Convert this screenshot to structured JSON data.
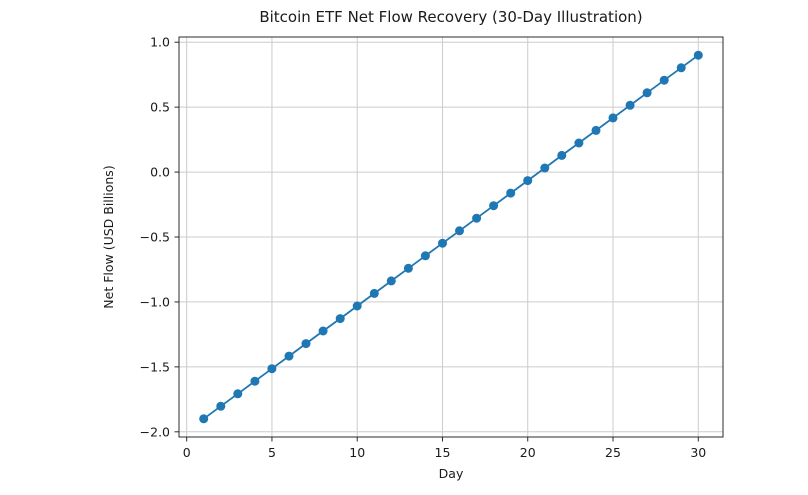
{
  "chart_data": {
    "type": "line",
    "title": "Bitcoin ETF Net Flow Recovery (30-Day Illustration)",
    "xlabel": "Day",
    "ylabel": "Net Flow (USD Billions)",
    "x": [
      1,
      2,
      3,
      4,
      5,
      6,
      7,
      8,
      9,
      10,
      11,
      12,
      13,
      14,
      15,
      16,
      17,
      18,
      19,
      20,
      21,
      22,
      23,
      24,
      25,
      26,
      27,
      28,
      29,
      30
    ],
    "y": [
      -1.9,
      -1.803,
      -1.707,
      -1.61,
      -1.514,
      -1.417,
      -1.321,
      -1.224,
      -1.128,
      -1.031,
      -0.934,
      -0.838,
      -0.741,
      -0.645,
      -0.548,
      -0.452,
      -0.355,
      -0.259,
      -0.162,
      -0.066,
      0.031,
      0.128,
      0.224,
      0.321,
      0.417,
      0.514,
      0.61,
      0.707,
      0.803,
      0.9
    ],
    "xticks": [
      0,
      5,
      10,
      15,
      20,
      25,
      30
    ],
    "yticks": [
      -2.0,
      -1.5,
      -1.0,
      -0.5,
      0.0,
      0.5,
      1.0
    ],
    "xlim": [
      -0.45,
      31.45
    ],
    "ylim": [
      -2.04,
      1.04
    ],
    "grid": true,
    "legend": null,
    "marker": "o",
    "series_color": "#1f77b4",
    "grid_color": "#cccccc",
    "spine_color": "#2b2b2b"
  }
}
